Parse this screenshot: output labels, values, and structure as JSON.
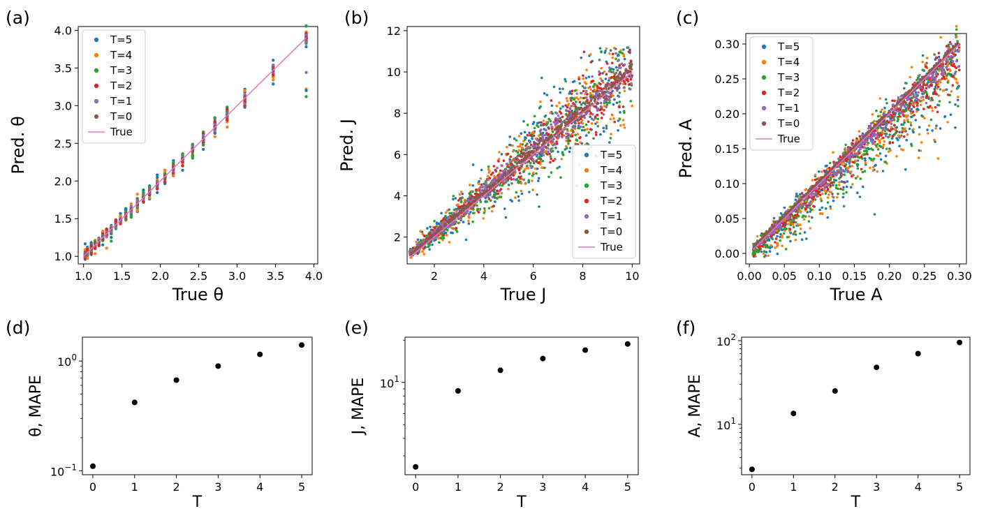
{
  "colors": {
    "T=5": "#1f77b4",
    "T=4": "#ff7f0e",
    "T=3": "#2ca02c",
    "T=2": "#d62728",
    "T=1": "#9467bd",
    "T=0": "#8c564b",
    "True": "#e377c2"
  },
  "chart_data": [
    {
      "panel": "(a)",
      "type": "scatter",
      "xlabel": "True θ",
      "ylabel": "Pred. θ",
      "xlim": [
        0.93,
        4.05
      ],
      "ylim": [
        0.9,
        4.05
      ],
      "xticks": [
        1.0,
        1.5,
        2.0,
        2.5,
        3.0,
        3.5,
        4.0
      ],
      "xtick_labels": [
        "1.0",
        "1.5",
        "2.0",
        "2.5",
        "3.0",
        "3.5",
        "4.0"
      ],
      "yticks": [
        1.0,
        1.5,
        2.0,
        2.5,
        3.0,
        3.5,
        4.0
      ],
      "ytick_labels": [
        "1.0",
        "1.5",
        "2.0",
        "2.5",
        "3.0",
        "3.5",
        "4.0"
      ],
      "legend": [
        "T=5",
        "T=4",
        "T=3",
        "T=2",
        "T=1",
        "T=0",
        "True"
      ],
      "legend_position": "top-left",
      "true_line": [
        [
          1.0,
          1.0
        ],
        [
          3.9,
          3.9
        ]
      ],
      "x_values": [
        1.02,
        1.05,
        1.1,
        1.15,
        1.2,
        1.25,
        1.3,
        1.36,
        1.42,
        1.48,
        1.55,
        1.62,
        1.7,
        1.78,
        1.86,
        1.96,
        2.06,
        2.17,
        2.29,
        2.42,
        2.56,
        2.71,
        2.87,
        3.1,
        3.47,
        3.9
      ],
      "spread_by_T": {
        "T=0": 0.005,
        "T=1": 0.015,
        "T=2": 0.025,
        "T=3": 0.035,
        "T=4": 0.045,
        "T=5": 0.055
      },
      "outliers": [
        {
          "series": "T=4",
          "x": 3.9,
          "y": 3.22
        },
        {
          "series": "T=3",
          "x": 3.9,
          "y": 3.12
        },
        {
          "series": "T=1",
          "x": 3.9,
          "y": 3.44
        },
        {
          "series": "T=5",
          "x": 3.9,
          "y": 3.2
        }
      ]
    },
    {
      "panel": "(b)",
      "type": "scatter",
      "xlabel": "True J",
      "ylabel": "Pred. J",
      "xlim": [
        0.9,
        10.3
      ],
      "ylim": [
        0.7,
        12.2
      ],
      "xticks": [
        2,
        4,
        6,
        8,
        10
      ],
      "xtick_labels": [
        "2",
        "4",
        "6",
        "8",
        "10"
      ],
      "yticks": [
        2,
        4,
        6,
        8,
        10,
        12
      ],
      "ytick_labels": [
        "2",
        "4",
        "6",
        "8",
        "10",
        "12"
      ],
      "legend": [
        "T=5",
        "T=4",
        "T=3",
        "T=2",
        "T=1",
        "T=0",
        "True"
      ],
      "legend_position": "lower-right",
      "true_line": [
        [
          1.0,
          1.0
        ],
        [
          10.0,
          10.0
        ]
      ],
      "x_range": [
        1.0,
        10.0
      ],
      "relative_spread_by_T": {
        "T=0": 0.02,
        "T=1": 0.06,
        "T=2": 0.09,
        "T=3": 0.12,
        "T=4": 0.14,
        "T=5": 0.16
      },
      "y_cap": 11.2
    },
    {
      "panel": "(c)",
      "type": "scatter",
      "xlabel": "True A",
      "ylabel": "Pred. A",
      "xlim": [
        -0.005,
        0.31
      ],
      "ylim": [
        -0.015,
        0.315
      ],
      "xticks": [
        0.0,
        0.05,
        0.1,
        0.15,
        0.2,
        0.25,
        0.3
      ],
      "xtick_labels": [
        "0.00",
        "0.05",
        "0.10",
        "0.15",
        "0.20",
        "0.25",
        "0.30"
      ],
      "yticks": [
        0.0,
        0.05,
        0.1,
        0.15,
        0.2,
        0.25,
        0.3
      ],
      "ytick_labels": [
        "0.00",
        "0.05",
        "0.10",
        "0.15",
        "0.20",
        "0.25",
        "0.30"
      ],
      "legend": [
        "T=5",
        "T=4",
        "T=3",
        "T=2",
        "T=1",
        "T=0",
        "True"
      ],
      "legend_position": "top-left",
      "true_line": [
        [
          0.005,
          0.005
        ],
        [
          0.3,
          0.3
        ]
      ],
      "x_range": [
        0.005,
        0.3
      ],
      "spread_by_T": {
        "T=0": 0.002,
        "T=1": 0.01,
        "T=2": 0.018,
        "T=3": 0.025,
        "T=4": 0.03,
        "T=5": 0.035
      }
    },
    {
      "panel": "(d)",
      "type": "scatter",
      "yscale": "log",
      "xlabel": "T",
      "ylabel": "θ, MAPE",
      "x": [
        0,
        1,
        2,
        3,
        4,
        5
      ],
      "y": [
        0.11,
        0.42,
        0.67,
        0.9,
        1.15,
        1.4
      ],
      "xlim": [
        -0.25,
        5.25
      ],
      "ylim": [
        0.092,
        1.65
      ],
      "xticks": [
        0,
        1,
        2,
        3,
        4,
        5
      ],
      "xtick_labels": [
        "0",
        "1",
        "2",
        "3",
        "4",
        "5"
      ],
      "log_major": [
        {
          "value": 0.1,
          "label_base": "10",
          "label_exp": "−1"
        },
        {
          "value": 1,
          "label_base": "10",
          "label_exp": "0"
        }
      ]
    },
    {
      "panel": "(e)",
      "type": "scatter",
      "yscale": "log",
      "xlabel": "T",
      "ylabel": "J, MAPE",
      "x": [
        0,
        1,
        2,
        3,
        4,
        5
      ],
      "y": [
        2.5,
        8.7,
        12.2,
        14.8,
        17.0,
        18.8
      ],
      "xlim": [
        -0.25,
        5.25
      ],
      "ylim": [
        2.2,
        21.0
      ],
      "xticks": [
        0,
        1,
        2,
        3,
        4,
        5
      ],
      "xtick_labels": [
        "0",
        "1",
        "2",
        "3",
        "4",
        "5"
      ],
      "log_major": [
        {
          "value": 10,
          "label_base": "10",
          "label_exp": "1"
        }
      ]
    },
    {
      "panel": "(f)",
      "type": "scatter",
      "yscale": "log",
      "xlabel": "T",
      "ylabel": "A, MAPE",
      "x": [
        0,
        1,
        2,
        3,
        4,
        5
      ],
      "y": [
        2.9,
        13.5,
        25.0,
        48.0,
        70.0,
        95.0
      ],
      "xlim": [
        -0.25,
        5.25
      ],
      "ylim": [
        2.5,
        110.0
      ],
      "xticks": [
        0,
        1,
        2,
        3,
        4,
        5
      ],
      "xtick_labels": [
        "0",
        "1",
        "2",
        "3",
        "4",
        "5"
      ],
      "log_major": [
        {
          "value": 10,
          "label_base": "10",
          "label_exp": "1"
        },
        {
          "value": 100,
          "label_base": "10",
          "label_exp": "2"
        }
      ]
    }
  ]
}
